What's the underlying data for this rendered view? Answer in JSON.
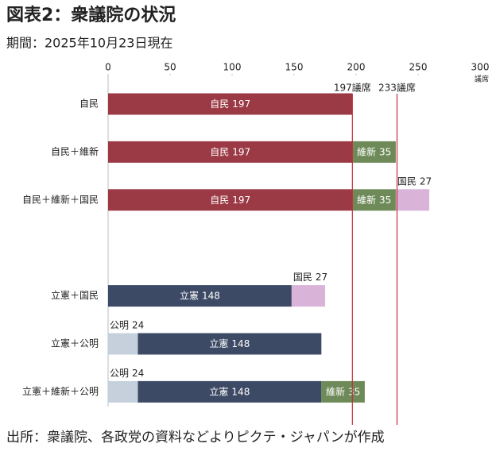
{
  "chart_data": {
    "type": "stacked-bar-horizontal",
    "title": "図表2：衆議院の状況",
    "subtitle": "期間：2025年10月23日現在",
    "source": "出所：衆議院、各政党の資料などよりピクテ・ジャパンが作成",
    "x_unit": "議席",
    "categories": [
      "自民",
      "自民＋維新",
      "自民＋維新＋国民",
      null,
      "立憲＋国民",
      "立憲＋公明",
      "立憲＋維新＋公明"
    ],
    "stacks": [
      [
        {
          "name": "自民",
          "value": 197,
          "color": "#9b3a45"
        }
      ],
      [
        {
          "name": "自民",
          "value": 197,
          "color": "#9b3a45"
        },
        {
          "name": "維新",
          "value": 35,
          "color": "#6e8a58"
        }
      ],
      [
        {
          "name": "自民",
          "value": 197,
          "color": "#9b3a45"
        },
        {
          "name": "維新",
          "value": 35,
          "color": "#6e8a58"
        },
        {
          "name": "国民",
          "value": 27,
          "color": "#d9b4d8"
        }
      ],
      [],
      [
        {
          "name": "立憲",
          "value": 148,
          "color": "#3d4a66"
        },
        {
          "name": "国民",
          "value": 27,
          "color": "#d9b4d8"
        }
      ],
      [
        {
          "name": "公明",
          "value": 24,
          "color": "#c5d0dc"
        },
        {
          "name": "立憲",
          "value": 148,
          "color": "#3d4a66"
        }
      ],
      [
        {
          "name": "公明",
          "value": 24,
          "color": "#c5d0dc"
        },
        {
          "name": "立憲",
          "value": 148,
          "color": "#3d4a66"
        },
        {
          "name": "維新",
          "value": 35,
          "color": "#6e8a58"
        }
      ]
    ],
    "ref_lines": [
      {
        "value": 197,
        "label": "197議席"
      },
      {
        "value": 233,
        "label": "233議席"
      }
    ],
    "ref_color": "#c0303a",
    "xlim": [
      0,
      300
    ],
    "xticks": [
      0,
      50,
      100,
      150,
      200,
      250,
      300
    ]
  }
}
